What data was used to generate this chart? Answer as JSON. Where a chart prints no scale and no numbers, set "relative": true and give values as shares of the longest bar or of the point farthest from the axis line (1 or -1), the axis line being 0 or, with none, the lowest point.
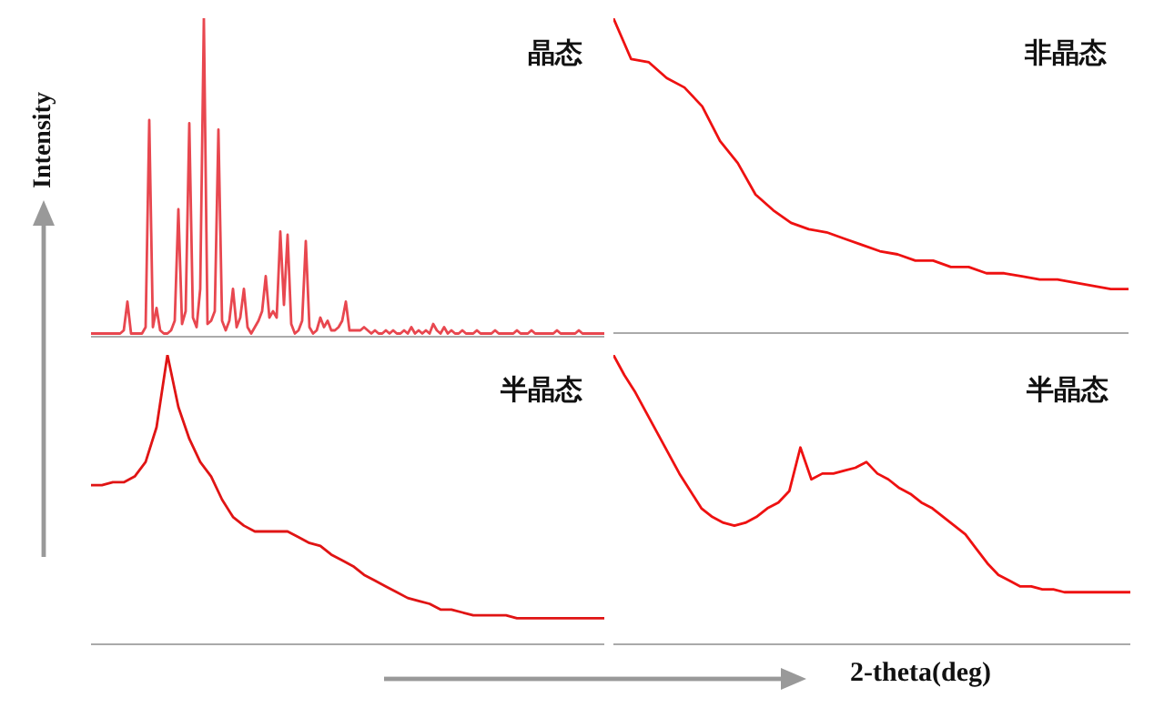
{
  "chart_data": [
    {
      "type": "line",
      "title": "晶态",
      "ylabel": "Intensity",
      "relative": true,
      "tick_labels": false,
      "categories": [
        null,
        null,
        null,
        null,
        null,
        null,
        null,
        null,
        null,
        null,
        null,
        null,
        null,
        null,
        null,
        null,
        null,
        null,
        null,
        null,
        null,
        null,
        null,
        null,
        null,
        null,
        null,
        null,
        null,
        null,
        null,
        null,
        null,
        null,
        null,
        null,
        null,
        null,
        null,
        null,
        null,
        null,
        null,
        null,
        null,
        null,
        null,
        null,
        null,
        null,
        null,
        null,
        null,
        null,
        null,
        null,
        null,
        null,
        null,
        null,
        null,
        null,
        null,
        null,
        null,
        null,
        null,
        null,
        null,
        null,
        null,
        null,
        null,
        null,
        null,
        null,
        null,
        null,
        null,
        null,
        null,
        null,
        null,
        null,
        null,
        null,
        null,
        null,
        null,
        null,
        null,
        null,
        null,
        null,
        null,
        null,
        null,
        null,
        null,
        null,
        null,
        null,
        null,
        null,
        null,
        null,
        null,
        null,
        null,
        null,
        null,
        null,
        null,
        null,
        null,
        null,
        null,
        null,
        null,
        null,
        null,
        null,
        null,
        null,
        null,
        null,
        null,
        null,
        null,
        null,
        null,
        null,
        null,
        null,
        null,
        null,
        null,
        null,
        null,
        null,
        null,
        null
      ],
      "series": [
        {
          "color": "#e8474f",
          "values": [
            0.01,
            0.01,
            0.01,
            0.01,
            0.01,
            0.01,
            0.01,
            0.01,
            0.01,
            0.02,
            0.11,
            0.01,
            0.01,
            0.01,
            0.01,
            0.03,
            0.68,
            0.03,
            0.09,
            0.02,
            0.01,
            0.01,
            0.02,
            0.05,
            0.4,
            0.04,
            0.08,
            0.67,
            0.06,
            0.03,
            0.15,
            1,
            0.04,
            0.05,
            0.08,
            0.65,
            0.05,
            0.02,
            0.05,
            0.15,
            0.03,
            0.06,
            0.15,
            0.03,
            0.01,
            0.03,
            0.05,
            0.08,
            0.19,
            0.06,
            0.08,
            0.06,
            0.33,
            0.1,
            0.32,
            0.04,
            0.01,
            0.02,
            0.05,
            0.3,
            0.03,
            0.01,
            0.02,
            0.06,
            0.03,
            0.05,
            0.02,
            0.02,
            0.03,
            0.05,
            0.11,
            0.02,
            0.02,
            0.02,
            0.02,
            0.03,
            0.02,
            0.01,
            0.02,
            0.01,
            0.01,
            0.02,
            0.01,
            0.02,
            0.01,
            0.01,
            0.02,
            0.01,
            0.03,
            0.01,
            0.02,
            0.01,
            0.02,
            0.01,
            0.04,
            0.02,
            0.01,
            0.03,
            0.01,
            0.02,
            0.01,
            0.01,
            0.02,
            0.01,
            0.01,
            0.01,
            0.02,
            0.01,
            0.01,
            0.01,
            0.01,
            0.02,
            0.01,
            0.01,
            0.01,
            0.01,
            0.01,
            0.02,
            0.01,
            0.01,
            0.01,
            0.02,
            0.01,
            0.01,
            0.01,
            0.01,
            0.01,
            0.01,
            0.02,
            0.01,
            0.01,
            0.01,
            0.01,
            0.01,
            0.02,
            0.01,
            0.01,
            0.01,
            0.01,
            0.01,
            0.01,
            0.01
          ]
        }
      ]
    },
    {
      "type": "line",
      "title": "非晶态",
      "relative": true,
      "tick_labels": false,
      "categories": [
        null,
        null,
        null,
        null,
        null,
        null,
        null,
        null,
        null,
        null,
        null,
        null,
        null,
        null,
        null,
        null,
        null,
        null,
        null,
        null,
        null,
        null,
        null,
        null,
        null,
        null,
        null,
        null,
        null,
        null
      ],
      "series": [
        {
          "color": "#ee1111",
          "values": [
            1.0,
            0.87,
            0.86,
            0.81,
            0.78,
            0.72,
            0.61,
            0.54,
            0.44,
            0.39,
            0.35,
            0.33,
            0.32,
            0.3,
            0.28,
            0.26,
            0.25,
            0.23,
            0.23,
            0.21,
            0.21,
            0.19,
            0.19,
            0.18,
            0.17,
            0.17,
            0.16,
            0.15,
            0.14,
            0.14
          ]
        }
      ]
    },
    {
      "type": "line",
      "title": "半晶态",
      "relative": true,
      "tick_labels": false,
      "categories": [
        null,
        null,
        null,
        null,
        null,
        null,
        null,
        null,
        null,
        null,
        null,
        null,
        null,
        null,
        null,
        null,
        null,
        null,
        null,
        null,
        null,
        null,
        null,
        null,
        null,
        null,
        null,
        null,
        null,
        null,
        null,
        null,
        null,
        null,
        null,
        null,
        null,
        null,
        null,
        null,
        null,
        null,
        null,
        null,
        null,
        null,
        null,
        null
      ],
      "series": [
        {
          "color": "#e01414",
          "values": [
            0.55,
            0.55,
            0.56,
            0.56,
            0.58,
            0.63,
            0.75,
            1,
            0.82,
            0.71,
            0.63,
            0.58,
            0.5,
            0.44,
            0.41,
            0.39,
            0.39,
            0.39,
            0.39,
            0.37,
            0.35,
            0.34,
            0.31,
            0.29,
            0.27,
            0.24,
            0.22,
            0.2,
            0.18,
            0.16,
            0.15,
            0.14,
            0.12,
            0.12,
            0.11,
            0.1,
            0.1,
            0.1,
            0.1,
            0.09,
            0.09,
            0.09,
            0.09,
            0.09,
            0.09,
            0.09,
            0.09,
            0.09
          ]
        }
      ]
    },
    {
      "type": "line",
      "title": "半晶态",
      "xlabel": "2-theta(deg)",
      "relative": true,
      "tick_labels": false,
      "categories": [
        null,
        null,
        null,
        null,
        null,
        null,
        null,
        null,
        null,
        null,
        null,
        null,
        null,
        null,
        null,
        null,
        null,
        null,
        null,
        null,
        null,
        null,
        null,
        null,
        null,
        null,
        null,
        null,
        null,
        null,
        null,
        null,
        null,
        null,
        null,
        null,
        null,
        null,
        null,
        null,
        null,
        null,
        null,
        null,
        null,
        null,
        null,
        null
      ],
      "series": [
        {
          "color": "#ee1111",
          "values": [
            1,
            0.93,
            0.87,
            0.8,
            0.73,
            0.66,
            0.59,
            0.53,
            0.47,
            0.44,
            0.42,
            0.41,
            0.42,
            0.44,
            0.47,
            0.49,
            0.53,
            0.68,
            0.57,
            0.59,
            0.59,
            0.6,
            0.61,
            0.63,
            0.59,
            0.57,
            0.54,
            0.52,
            0.49,
            0.47,
            0.44,
            0.41,
            0.38,
            0.33,
            0.28,
            0.24,
            0.22,
            0.2,
            0.2,
            0.19,
            0.19,
            0.18,
            0.18,
            0.18,
            0.18,
            0.18,
            0.18,
            0.18
          ]
        }
      ]
    }
  ]
}
